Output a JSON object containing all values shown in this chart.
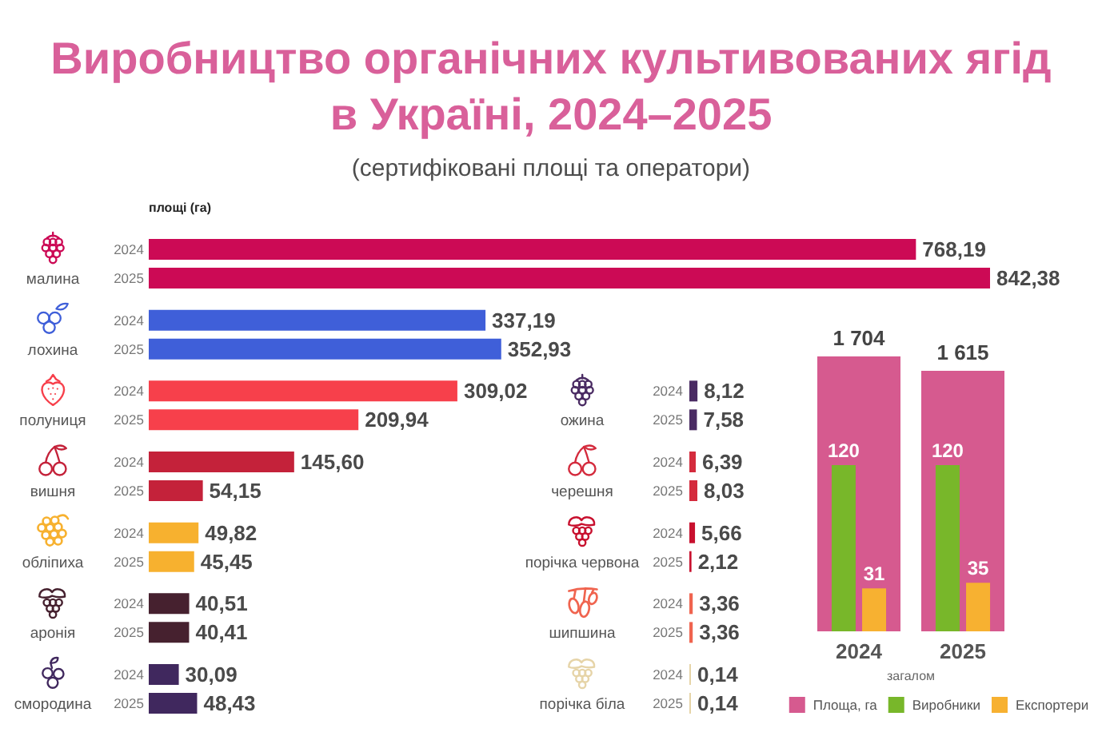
{
  "chart_data": [
    {
      "type": "bar",
      "orientation": "horizontal",
      "title": "Виробництво органічних культивованих ягід в Україні, 2024–2025",
      "subtitle": "(сертифіковані площі та оператори)",
      "xlabel": "площі (га)",
      "categories": [
        "малина",
        "лохина",
        "полуниця",
        "вишня",
        "обліпиха",
        "аронія",
        "смородина"
      ],
      "series": [
        {
          "name": "2024",
          "colors": [
            "#cc0a55",
            "#3f5fd9",
            "#f7404b",
            "#c4223a",
            "#f7b12f",
            "#46212f",
            "#40285e"
          ],
          "values": [
            768.19,
            337.19,
            309.02,
            145.6,
            49.82,
            40.51,
            30.09
          ],
          "value_labels": [
            "768,19",
            "337,19",
            "309,02",
            "145,60",
            "49,82",
            "40,51",
            "30,09"
          ]
        },
        {
          "name": "2025",
          "colors": [
            "#cc0a55",
            "#3f5fd9",
            "#f7404b",
            "#c4223a",
            "#f7b12f",
            "#46212f",
            "#40285e"
          ],
          "values": [
            842.38,
            352.93,
            209.94,
            54.15,
            45.45,
            40.41,
            48.43
          ],
          "value_labels": [
            "842,38",
            "352,93",
            "209,94",
            "54,15",
            "45,45",
            "40,41",
            "48,43"
          ]
        }
      ],
      "tick_labels": "y"
    },
    {
      "type": "bar",
      "orientation": "horizontal",
      "categories": [
        "ожина",
        "черешня",
        "порічка червона",
        "шипшина",
        "порічка біла"
      ],
      "series": [
        {
          "name": "2024",
          "colors": [
            "#4a2b63",
            "#d42b3d",
            "#c8102e",
            "#f0644f",
            "#e6d4a8"
          ],
          "values": [
            8.12,
            6.39,
            5.66,
            3.36,
            0.14
          ],
          "value_labels": [
            "8,12",
            "6,39",
            "5,66",
            "3,36",
            "0,14"
          ]
        },
        {
          "name": "2025",
          "colors": [
            "#4a2b63",
            "#d42b3d",
            "#c8102e",
            "#f0644f",
            "#e6d4a8"
          ],
          "values": [
            7.58,
            8.03,
            2.12,
            3.36,
            0.14
          ],
          "value_labels": [
            "7,58",
            "8,03",
            "2,12",
            "3,36",
            "0,14"
          ]
        }
      ],
      "tick_labels": "y"
    },
    {
      "type": "bar",
      "categories": [
        "2024",
        "2025"
      ],
      "xlabel": "загалом",
      "series": [
        {
          "name": "Площа, га",
          "color": "#d65a8f",
          "values": [
            1704,
            1615
          ],
          "value_labels": [
            "1 704",
            "1 615"
          ]
        },
        {
          "name": "Виробники",
          "color": "#78b72a",
          "values": [
            120,
            120
          ],
          "axis": "y2",
          "value_labels": [
            "120",
            "120"
          ]
        },
        {
          "name": "Експортери",
          "color": "#f7b131",
          "values": [
            31,
            35
          ],
          "axis": "y2",
          "value_labels": [
            "31",
            "35"
          ]
        }
      ],
      "legend": "bottom",
      "tick_labels": "x"
    }
  ]
}
